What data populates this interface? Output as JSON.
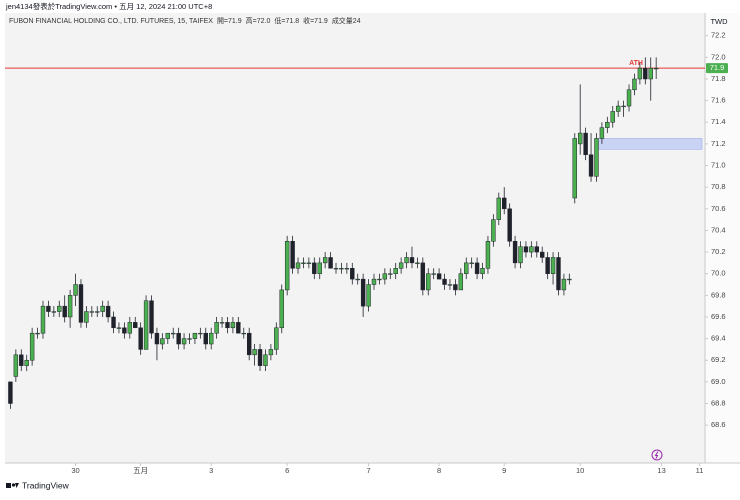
{
  "header": {
    "author_line": "jen4134發表於TradingView.com • 五月 12, 2024 21:00 UTC+8"
  },
  "footer": {
    "brand": "TradingView"
  },
  "chart_data": {
    "type": "candlestick",
    "title": "FUBON FINANCIAL HOLDING CO., LTD. FUTURES, 15, TAIFEX",
    "ohlc_legend": [
      "開=71.9",
      "高=72.0",
      "低=71.8",
      "收=71.9",
      "成交量24"
    ],
    "currency": "TWD",
    "up_color": "#4caf50",
    "down_color": "#1f222b",
    "open": [
      69.0,
      69.05,
      69.25,
      69.15,
      69.2,
      69.45,
      69.45,
      69.7,
      69.65,
      69.65,
      69.7,
      69.6,
      69.8,
      69.9,
      69.55,
      69.65,
      69.65,
      69.65,
      69.7,
      69.6,
      69.5,
      69.5,
      69.45,
      69.55,
      69.5,
      69.3,
      69.75,
      69.45,
      69.35,
      69.4,
      69.45,
      69.45,
      69.35,
      69.4,
      69.4,
      69.45,
      69.45,
      69.35,
      69.45,
      69.55,
      69.55,
      69.5,
      69.55,
      69.45,
      69.45,
      69.25,
      69.3,
      69.15,
      69.25,
      69.3,
      69.5,
      69.85,
      70.3,
      70.05,
      70.1,
      70.1,
      70.1,
      70.0,
      70.1,
      70.15,
      70.05,
      70.05,
      70.05,
      70.05,
      69.95,
      69.95,
      69.7,
      69.9,
      69.95,
      69.95,
      70.0,
      70.0,
      70.05,
      70.1,
      70.15,
      70.1,
      70.1,
      69.85,
      70.0,
      70.0,
      69.95,
      69.9,
      69.9,
      69.85,
      70.0,
      70.1,
      70.1,
      70.0,
      70.05,
      70.3,
      70.5,
      70.7,
      70.6,
      70.3,
      70.1,
      70.25,
      70.2,
      70.25,
      70.2,
      70.15,
      70.0,
      70.15,
      69.85,
      69.95,
      70.7,
      71.2,
      71.3,
      71.1,
      70.9,
      71.25,
      71.35,
      71.4,
      71.5,
      71.55,
      71.55,
      71.7,
      71.8,
      71.9,
      71.8,
      71.9
    ],
    "high": [
      69.0,
      69.3,
      69.3,
      69.25,
      69.5,
      69.5,
      69.75,
      69.75,
      69.7,
      69.75,
      69.8,
      69.85,
      70.0,
      69.95,
      69.7,
      69.7,
      69.7,
      69.75,
      69.75,
      69.65,
      69.55,
      69.55,
      69.6,
      69.6,
      69.55,
      69.8,
      69.8,
      69.5,
      69.45,
      69.45,
      69.5,
      69.5,
      69.45,
      69.45,
      69.45,
      69.5,
      69.5,
      69.5,
      69.6,
      69.6,
      69.6,
      69.6,
      69.6,
      69.5,
      69.5,
      69.35,
      69.35,
      69.3,
      69.35,
      69.55,
      69.9,
      70.35,
      70.35,
      70.15,
      70.15,
      70.15,
      70.15,
      70.15,
      70.2,
      70.2,
      70.1,
      70.1,
      70.1,
      70.1,
      70.0,
      70.0,
      69.95,
      70.0,
      70.0,
      70.05,
      70.05,
      70.1,
      70.15,
      70.2,
      70.25,
      70.15,
      70.15,
      70.05,
      70.05,
      70.05,
      70.0,
      69.95,
      69.95,
      70.05,
      70.15,
      70.15,
      70.15,
      70.1,
      70.35,
      70.55,
      70.75,
      70.8,
      70.65,
      70.35,
      70.3,
      70.3,
      70.3,
      70.3,
      70.25,
      70.2,
      70.2,
      70.2,
      70.0,
      70.0,
      71.3,
      71.75,
      71.35,
      71.3,
      71.3,
      71.4,
      71.45,
      71.55,
      71.6,
      71.6,
      71.75,
      71.85,
      71.95,
      72.0,
      72.0,
      72.0
    ],
    "low": [
      68.75,
      69.0,
      69.1,
      69.1,
      69.15,
      69.4,
      69.4,
      69.6,
      69.6,
      69.6,
      69.55,
      69.5,
      69.7,
      69.5,
      69.5,
      69.6,
      69.6,
      69.6,
      69.55,
      69.45,
      69.45,
      69.4,
      69.4,
      69.5,
      69.25,
      69.3,
      69.4,
      69.2,
      69.3,
      69.35,
      69.4,
      69.3,
      69.3,
      69.35,
      69.35,
      69.4,
      69.3,
      69.3,
      69.4,
      69.5,
      69.45,
      69.45,
      69.45,
      69.4,
      69.2,
      69.15,
      69.1,
      69.1,
      69.2,
      69.25,
      69.45,
      69.8,
      70.0,
      70.0,
      70.05,
      70.05,
      69.95,
      69.95,
      70.05,
      70.05,
      70.0,
      70.0,
      70.0,
      69.9,
      69.9,
      69.6,
      69.65,
      69.85,
      69.9,
      69.9,
      69.95,
      69.95,
      70.0,
      70.05,
      70.05,
      70.05,
      69.8,
      69.8,
      69.95,
      69.95,
      69.85,
      69.85,
      69.8,
      69.85,
      69.95,
      70.05,
      69.95,
      69.95,
      70.0,
      70.25,
      70.45,
      70.55,
      70.25,
      70.05,
      70.05,
      70.15,
      70.15,
      70.15,
      70.1,
      69.95,
      69.9,
      69.8,
      69.8,
      69.9,
      70.65,
      71.1,
      71.05,
      70.85,
      70.85,
      71.2,
      71.3,
      71.35,
      71.45,
      71.45,
      71.5,
      71.65,
      71.75,
      71.75,
      71.6,
      71.8
    ],
    "close": [
      68.8,
      69.25,
      69.15,
      69.2,
      69.45,
      69.45,
      69.7,
      69.65,
      69.65,
      69.7,
      69.6,
      69.8,
      69.9,
      69.55,
      69.65,
      69.65,
      69.65,
      69.7,
      69.6,
      69.5,
      69.5,
      69.45,
      69.55,
      69.5,
      69.3,
      69.75,
      69.45,
      69.35,
      69.4,
      69.45,
      69.45,
      69.35,
      69.4,
      69.4,
      69.45,
      69.45,
      69.35,
      69.45,
      69.55,
      69.55,
      69.5,
      69.55,
      69.45,
      69.45,
      69.25,
      69.3,
      69.15,
      69.25,
      69.3,
      69.5,
      69.85,
      70.3,
      70.05,
      70.1,
      70.1,
      70.1,
      70.0,
      70.1,
      70.15,
      70.05,
      70.05,
      70.05,
      70.05,
      69.95,
      69.95,
      69.7,
      69.9,
      69.95,
      69.95,
      70.0,
      70.0,
      70.05,
      70.1,
      70.15,
      70.1,
      70.1,
      69.85,
      70.0,
      70.0,
      69.95,
      69.9,
      69.9,
      69.85,
      70.0,
      70.1,
      70.1,
      70.0,
      70.05,
      70.3,
      70.5,
      70.7,
      70.6,
      70.3,
      70.1,
      70.25,
      70.2,
      70.25,
      70.2,
      70.15,
      70.0,
      70.15,
      69.85,
      69.95,
      69.95,
      71.25,
      71.3,
      71.1,
      70.9,
      71.25,
      71.35,
      71.4,
      71.5,
      71.55,
      71.55,
      71.7,
      71.8,
      71.9,
      71.8,
      71.9,
      71.9
    ],
    "xlim": [
      -1,
      128
    ],
    "xticks": [
      {
        "value": 12,
        "label": "30"
      },
      {
        "value": 24,
        "label": "五月"
      },
      {
        "value": 37,
        "label": "3"
      },
      {
        "value": 51,
        "label": "6"
      },
      {
        "value": 66,
        "label": "7"
      },
      {
        "value": 79,
        "label": "8"
      },
      {
        "value": 91,
        "label": "9"
      },
      {
        "value": 105,
        "label": "10"
      },
      {
        "value": 120,
        "label": "13"
      },
      {
        "value": 127,
        "label": "11"
      }
    ],
    "ylim": [
      68.25,
      72.41
    ],
    "yticks": [
      68.6,
      68.8,
      {
        "value": 69.0,
        "label": "69.0"
      },
      69.2,
      69.4,
      69.6,
      69.8,
      {
        "value": 70.0,
        "label": "70.0"
      },
      70.2,
      70.4,
      70.6,
      70.8,
      {
        "value": 71.0,
        "label": "71.0"
      },
      71.2,
      71.4,
      71.6,
      71.8,
      {
        "value": 72.0,
        "label": "72.0"
      },
      72.2
    ],
    "ath_line": {
      "value": 71.9,
      "label": "ATH",
      "color": "#e53935"
    },
    "zone": {
      "low": 71.15,
      "high": 71.25,
      "start": 108,
      "color": "#b7c4f2"
    }
  }
}
